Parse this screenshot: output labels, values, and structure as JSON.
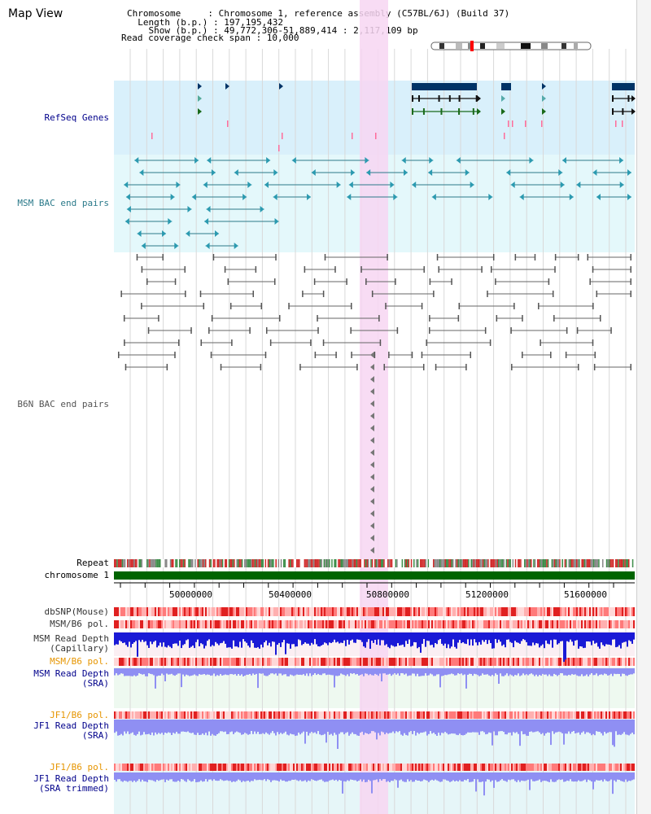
{
  "view": {
    "title": "Map View",
    "header_lines": [
      "Chromosome     : Chromosome 1, reference assembly (C57BL/6J) (Build 37)",
      "  Length (b.p.) : 197,195,432",
      "    Show (b.p.) : 49,772,306-51,889,414 : 2,117,109 bp",
      "Read coverage check span : 10,000"
    ],
    "axis_ticks": [
      "50000000",
      "50400000",
      "50800000",
      "51200000",
      "51600000"
    ]
  },
  "tracks": {
    "refseq": {
      "label": "RefSeq Genes",
      "color": "#00008b"
    },
    "msm_bac": {
      "label": "MSM BAC end pairs",
      "color": "#2b7a8a"
    },
    "b6n_bac": {
      "label": "B6N BAC end pairs",
      "color": "#555555"
    },
    "repeat": {
      "label": "Repeat"
    },
    "chromosome": {
      "label": "chromosome 1",
      "color": "#006400"
    },
    "dbsnp": {
      "label": "dbSNP(Mouse)"
    },
    "msm_pol": {
      "label": "MSM/B6 pol."
    },
    "msm_depth_cap": {
      "label": "MSM Read Depth\n(Capillary)"
    },
    "msm_pol2": {
      "label": "MSM/B6 pol.",
      "color": "#e69500"
    },
    "msm_depth_sra": {
      "label": "MSM Read Depth\n(SRA)",
      "color": "#00008b"
    },
    "jf1_pol": {
      "label": "JF1/B6 pol.",
      "color": "#e69500"
    },
    "jf1_depth_sra": {
      "label": "JF1 Read Depth\n(SRA)",
      "color": "#00008b"
    },
    "jf1_pol2": {
      "label": "JF1/B6 pol.",
      "color": "#e69500"
    },
    "jf1_depth_trim": {
      "label": "JF1 Read Depth\n(SRA trimmed)",
      "color": "#00008b"
    }
  },
  "colors": {
    "highlight": "#f7d6f2",
    "refseq_bg": "#d9f0fb",
    "msm_bg": "#e4f8fb",
    "grid": "#d9d9d9",
    "snp": "#e83a3a",
    "depth_cap": "#1a1ad6",
    "depth_sra": "#8f8ff3"
  }
}
